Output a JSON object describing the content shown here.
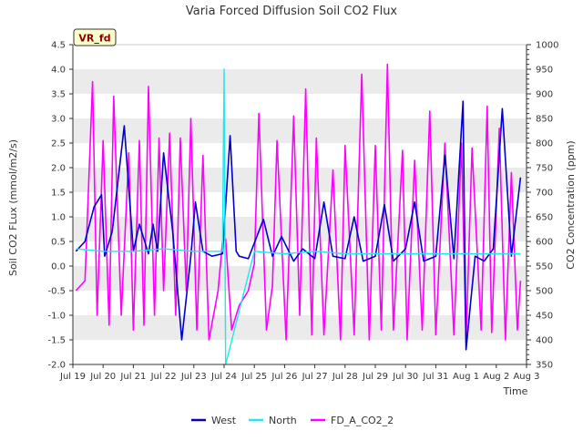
{
  "chart_data": {
    "type": "line",
    "title": "Varia Forced Diffusion Soil CO2 Flux",
    "badge": "VR_fd",
    "xlabel": "Time",
    "ylabel": "Soil CO2 FLux (mmol/m2/s)",
    "y2label": "CO2 Concentration (ppm)",
    "xlim": [
      0,
      15
    ],
    "ylim": [
      -2.0,
      4.5
    ],
    "y2lim": [
      350,
      1000
    ],
    "x_ticks": [
      "Jul 19",
      "Jul 20",
      "Jul 21",
      "Jul 22",
      "Jul 23",
      "Jul 24",
      "Jul 25",
      "Jul 26",
      "Jul 27",
      "Jul 28",
      "Jul 29",
      "Jul 30",
      "Jul 31",
      "Aug 1",
      "Aug 2",
      "Aug 3"
    ],
    "y_ticks": [
      "-2.0",
      "-1.5",
      "-1.0",
      "-0.5",
      "0.0",
      "0.5",
      "1.0",
      "1.5",
      "2.0",
      "2.5",
      "3.0",
      "3.5",
      "4.0",
      "4.5"
    ],
    "y2_ticks": [
      "350",
      "400",
      "450",
      "500",
      "550",
      "600",
      "650",
      "700",
      "750",
      "800",
      "850",
      "900",
      "950",
      "1000"
    ],
    "grid": "horizontal bands",
    "legend_position": "bottom",
    "colors": {
      "west": "#0000cd",
      "north": "#1ee8f0",
      "fd": "#ff00ff",
      "band": "#ebebeb",
      "badge_bg": "#ffffcc",
      "badge_text": "#8b0000"
    },
    "series": [
      {
        "name": "West",
        "axis": "left",
        "x": [
          0.1,
          0.4,
          0.7,
          0.95,
          1.05,
          1.3,
          1.7,
          2.0,
          2.2,
          2.5,
          2.65,
          2.8,
          3.0,
          3.3,
          3.6,
          3.9,
          4.05,
          4.3,
          4.6,
          4.95,
          5.2,
          5.4,
          5.5,
          5.8,
          6.3,
          6.6,
          6.9,
          7.3,
          7.6,
          8.0,
          8.3,
          8.6,
          9.0,
          9.3,
          9.6,
          10.0,
          10.3,
          10.6,
          11.0,
          11.3,
          11.6,
          12.0,
          12.3,
          12.6,
          12.9,
          13.0,
          13.3,
          13.6,
          13.9,
          14.2,
          14.5,
          14.8
        ],
        "y": [
          0.3,
          0.5,
          1.2,
          1.45,
          0.2,
          0.7,
          2.85,
          0.3,
          0.85,
          0.25,
          0.85,
          0.3,
          2.3,
          0.7,
          -1.5,
          0.2,
          1.3,
          0.3,
          0.2,
          0.25,
          2.65,
          0.3,
          0.2,
          0.15,
          0.95,
          0.2,
          0.6,
          0.1,
          0.35,
          0.15,
          1.3,
          0.2,
          0.15,
          1.0,
          0.1,
          0.2,
          1.25,
          0.1,
          0.35,
          1.3,
          0.1,
          0.2,
          2.25,
          0.15,
          3.35,
          -1.7,
          0.2,
          0.1,
          0.35,
          3.2,
          0.2,
          1.8
        ]
      },
      {
        "name": "North",
        "axis": "left",
        "x": [
          0.1,
          1.0,
          2.0,
          3.0,
          4.0,
          4.95,
          5.0,
          5.05,
          6.0,
          7.0,
          8.0,
          9.0,
          10.0,
          11.0,
          12.0,
          13.0,
          14.0,
          14.8
        ],
        "y": [
          0.35,
          0.3,
          0.3,
          0.35,
          0.3,
          0.3,
          4.0,
          -2.0,
          0.3,
          0.25,
          0.3,
          0.25,
          0.25,
          0.25,
          0.25,
          0.25,
          0.25,
          0.25
        ],
        "note": "noisy baseline near 0.2–0.4 with one spike to 4.0 on Jul 24"
      },
      {
        "name": "FD_A_CO2_2",
        "axis": "right",
        "x": [
          0.1,
          0.4,
          0.65,
          0.8,
          1.0,
          1.2,
          1.35,
          1.6,
          1.85,
          2.0,
          2.2,
          2.35,
          2.5,
          2.7,
          2.85,
          3.0,
          3.2,
          3.4,
          3.55,
          3.75,
          3.9,
          4.1,
          4.3,
          4.5,
          4.8,
          4.95,
          5.05,
          5.25,
          5.5,
          5.8,
          6.0,
          6.15,
          6.4,
          6.6,
          6.75,
          7.05,
          7.3,
          7.5,
          7.7,
          7.9,
          8.05,
          8.3,
          8.6,
          8.85,
          9.0,
          9.3,
          9.55,
          9.8,
          10.0,
          10.2,
          10.4,
          10.6,
          10.9,
          11.05,
          11.3,
          11.55,
          11.8,
          12.0,
          12.3,
          12.6,
          12.85,
          13.0,
          13.2,
          13.5,
          13.7,
          13.85,
          14.1,
          14.3,
          14.5,
          14.7,
          14.8
        ],
        "y": [
          500,
          520,
          925,
          450,
          805,
          430,
          895,
          450,
          780,
          420,
          805,
          430,
          915,
          450,
          810,
          500,
          820,
          450,
          810,
          500,
          850,
          420,
          775,
          400,
          500,
          600,
          605,
          420,
          470,
          500,
          555,
          860,
          420,
          510,
          805,
          400,
          855,
          450,
          910,
          410,
          810,
          410,
          745,
          400,
          795,
          410,
          940,
          400,
          795,
          420,
          960,
          420,
          785,
          400,
          765,
          420,
          865,
          410,
          800,
          410,
          800,
          395,
          790,
          420,
          875,
          415,
          830,
          400,
          740,
          420,
          520
        ]
      }
    ]
  }
}
